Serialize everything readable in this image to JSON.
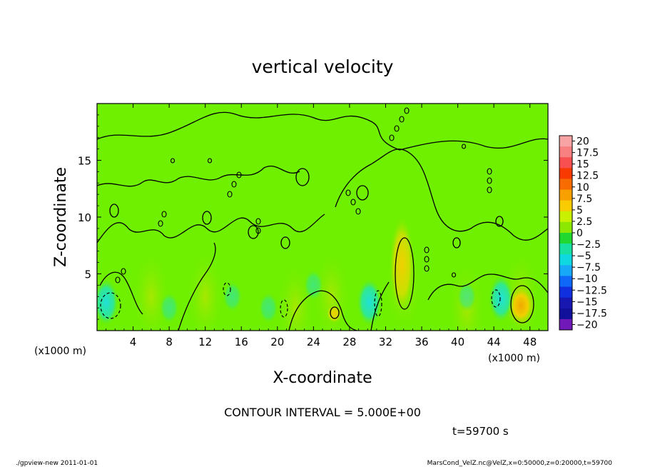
{
  "chart_data": {
    "type": "heatmap",
    "title": "vertical velocity",
    "xlabel": "X-coordinate",
    "ylabel": "Z-coordinate",
    "x_unit": "(x1000 m)",
    "y_unit": "(x1000 m)",
    "xlim": [
      0,
      50
    ],
    "ylim": [
      0,
      20
    ],
    "x_ticks": [
      4,
      8,
      12,
      16,
      20,
      24,
      28,
      32,
      36,
      40,
      44,
      48
    ],
    "y_ticks": [
      5,
      10,
      15
    ],
    "colorbar": {
      "levels": [
        20,
        17.5,
        15,
        12.5,
        10,
        7.5,
        5,
        2.5,
        0,
        -2.5,
        -5,
        -7.5,
        -10,
        -12.5,
        -15,
        -17.5,
        -20
      ],
      "labels": [
        "20",
        "17.5",
        "15",
        "12.5",
        "10",
        "7.5",
        "5",
        "2.5",
        "0",
        "−2.5",
        "−5",
        "−7.5",
        "−10",
        "−12.5",
        "−15",
        "−17.5",
        "−20"
      ],
      "colors": [
        "#f9a4a4",
        "#f98080",
        "#f85050",
        "#f83a00",
        "#f86b00",
        "#f8a000",
        "#f8cc00",
        "#c8f000",
        "#8ce800",
        "#20d830",
        "#18e0a0",
        "#10d8e0",
        "#18a8f8",
        "#1068f8",
        "#1030e0",
        "#1818b0",
        "#10109a",
        "#7018b8"
      ]
    },
    "contour_interval_text": "CONTOUR INTERVAL = 5.000E+00",
    "time_text": "t=59700 s",
    "features": [
      {
        "x": 33.8,
        "z": 5.8,
        "value": 5,
        "kind": "updraft"
      },
      {
        "x": 47.0,
        "z": 2.2,
        "value": 5,
        "kind": "updraft"
      },
      {
        "x": 26.3,
        "z": 1.5,
        "value": 5,
        "kind": "updraft"
      },
      {
        "x": 1.0,
        "z": 2.5,
        "value": -5,
        "kind": "downdraft"
      },
      {
        "x": 30.2,
        "z": 2.5,
        "value": -5,
        "kind": "downdraft"
      },
      {
        "x": 44.8,
        "z": 2.8,
        "value": -5,
        "kind": "downdraft"
      }
    ]
  },
  "footer": {
    "left": "./gpview-new  2011-01-01",
    "right": "MarsCond_VelZ.nc@VelZ,x=0:50000,z=0:20000,t=59700"
  },
  "colors": {
    "background_field": "#6ef000",
    "updraft": "#f8c000",
    "downdraft": "#20e0d8"
  }
}
